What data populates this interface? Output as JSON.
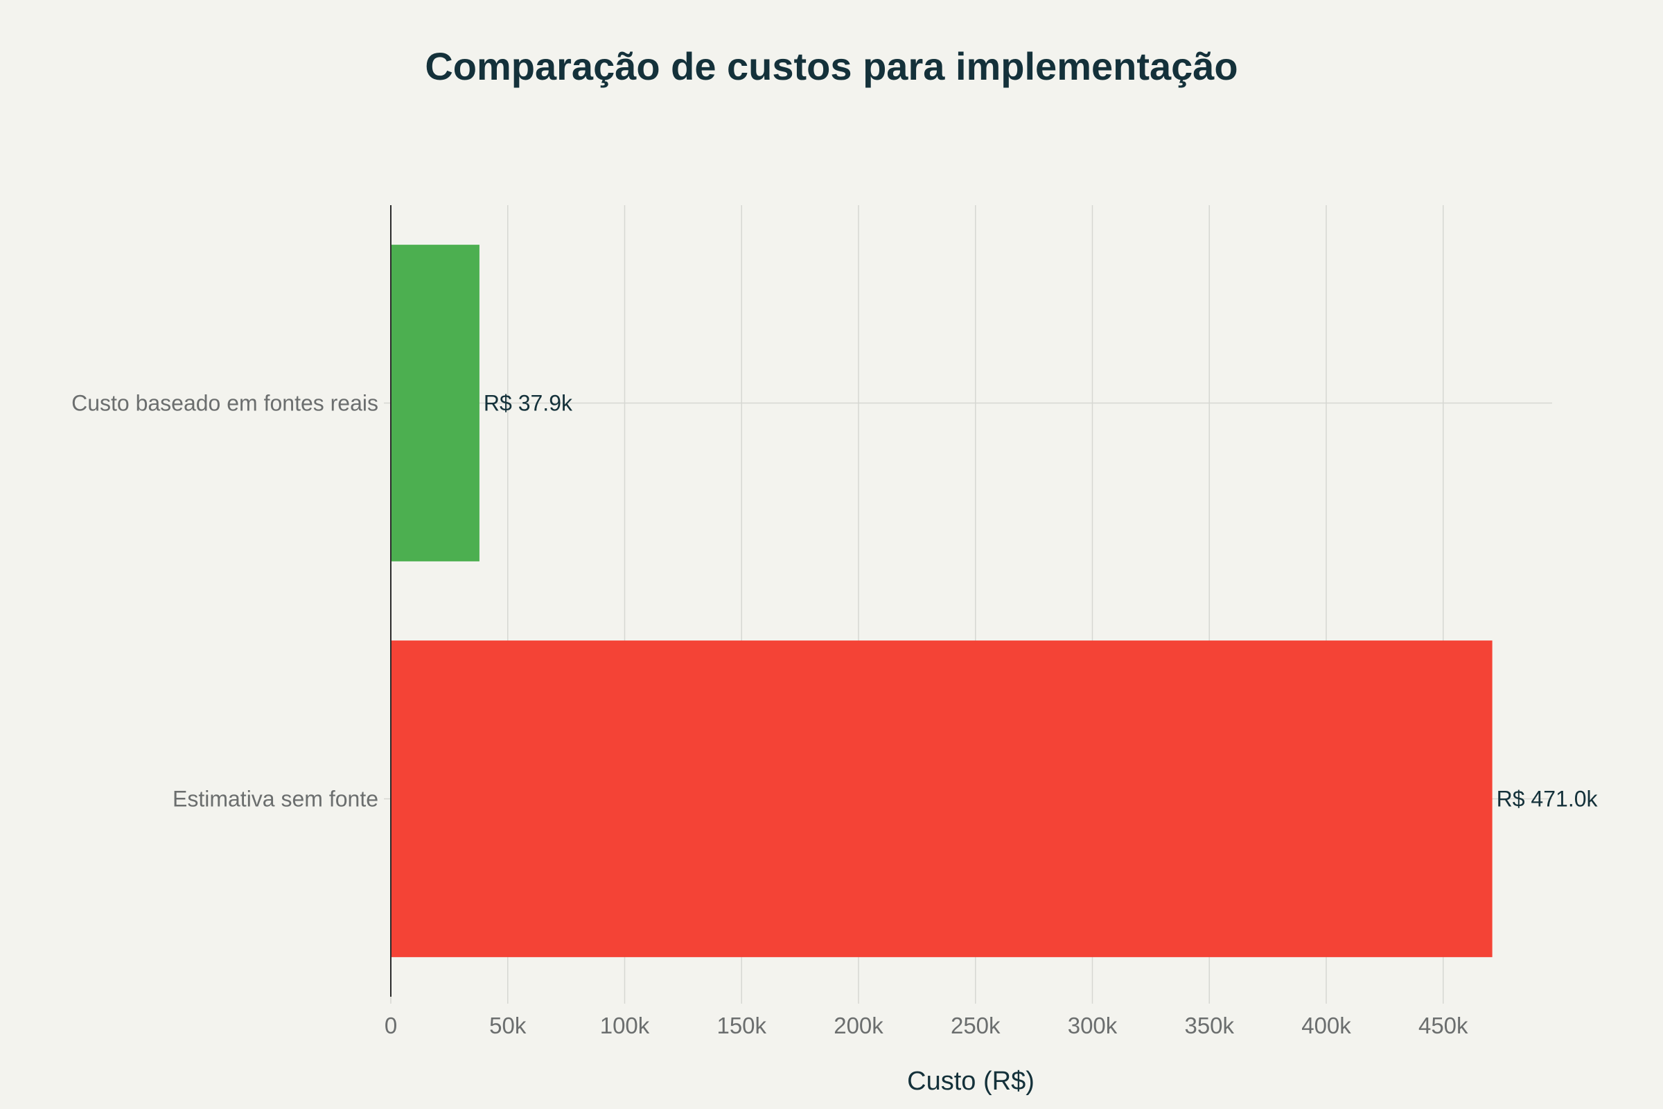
{
  "chart_data": {
    "type": "bar",
    "orientation": "horizontal",
    "title": "Comparação de custos para implementação",
    "xlabel": "Custo (R$)",
    "ylabel": "",
    "categories": [
      "Custo baseado em fontes reais",
      "Estimativa sem fonte"
    ],
    "values": [
      37900,
      471000
    ],
    "data_labels": [
      "R$ 37.9k",
      "R$ 471.0k"
    ],
    "bar_colors": [
      "#4caf50",
      "#f44336"
    ],
    "xlim": [
      0,
      500000
    ],
    "x_ticks": [
      0,
      50000,
      100000,
      150000,
      200000,
      250000,
      300000,
      350000,
      400000,
      450000
    ],
    "x_tick_labels": [
      "0",
      "50k",
      "100k",
      "150k",
      "200k",
      "250k",
      "300k",
      "350k",
      "400k",
      "450k"
    ],
    "grid": true,
    "legend": "none",
    "background": "#f3f3ee",
    "grid_color": "#d6d7d2",
    "text_color": "#14313a",
    "tick_color": "#6b6e6e"
  }
}
